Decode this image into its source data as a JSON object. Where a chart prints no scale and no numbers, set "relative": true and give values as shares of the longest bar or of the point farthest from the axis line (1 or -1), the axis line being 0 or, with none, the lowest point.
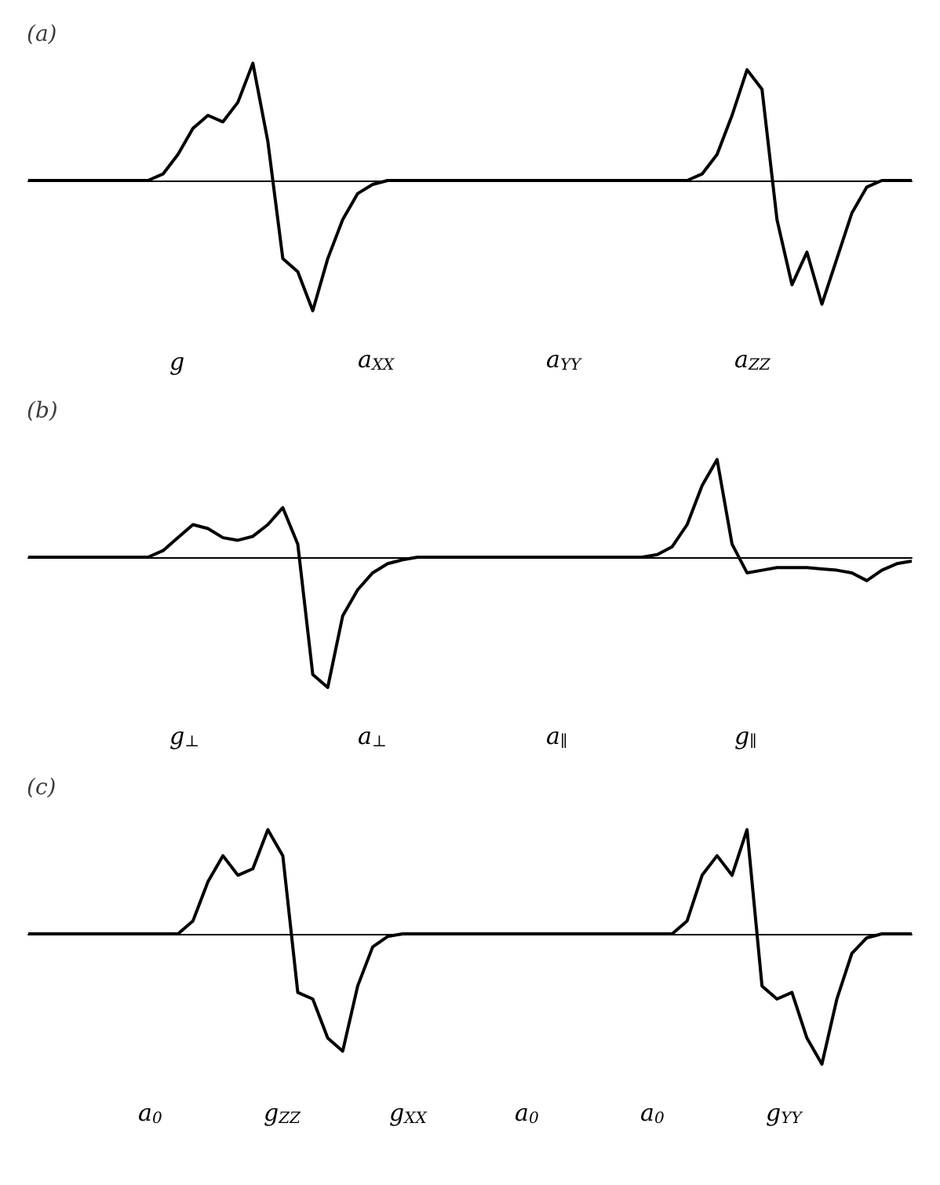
{
  "chart_data": [
    {
      "type": "line",
      "title": "(a)",
      "relative": true,
      "color": "#000000",
      "categories": [
        null,
        null,
        null,
        null,
        null,
        null,
        null,
        null,
        null,
        null,
        null,
        null,
        null,
        null,
        null,
        null,
        null,
        null,
        null,
        null,
        null,
        null,
        null,
        null,
        null,
        null,
        null,
        null,
        null,
        null,
        null,
        null,
        null,
        null,
        null,
        null,
        null,
        null,
        null,
        null,
        null,
        null,
        null,
        null,
        null,
        null,
        null,
        null,
        null,
        null,
        null,
        null,
        null,
        null,
        null,
        null,
        null,
        null,
        null,
        null
      ],
      "values": [
        0,
        0,
        0,
        0,
        0,
        0,
        0,
        0,
        0,
        0.05,
        0.2,
        0.4,
        0.5,
        0.45,
        0.6,
        0.9,
        0.3,
        -0.6,
        -0.7,
        -1,
        -0.6,
        -0.3,
        -0.1,
        -0.03,
        0,
        0,
        0,
        0,
        0,
        0,
        0,
        0,
        0,
        0,
        0,
        0,
        0,
        0,
        0,
        0,
        0,
        0,
        0,
        0,
        0,
        0.05,
        0.2,
        0.5,
        0.85,
        0.7,
        -0.3,
        -0.8,
        -0.55,
        -0.95,
        -0.6,
        -0.25,
        -0.05,
        0,
        0,
        0
      ],
      "annotations": [
        "g",
        "a$_{XX}$",
        "a$_{YY}$",
        "a$_{ZZ}$"
      ]
    },
    {
      "type": "line",
      "title": "(b)",
      "relative": true,
      "color": "#000000",
      "categories": [
        null,
        null,
        null,
        null,
        null,
        null,
        null,
        null,
        null,
        null,
        null,
        null,
        null,
        null,
        null,
        null,
        null,
        null,
        null,
        null,
        null,
        null,
        null,
        null,
        null,
        null,
        null,
        null,
        null,
        null,
        null,
        null,
        null,
        null,
        null,
        null,
        null,
        null,
        null,
        null,
        null,
        null,
        null,
        null,
        null,
        null,
        null,
        null,
        null,
        null,
        null,
        null,
        null,
        null,
        null,
        null,
        null,
        null,
        null,
        null
      ],
      "values": [
        0,
        0,
        0,
        0,
        0,
        0,
        0,
        0,
        0,
        0.05,
        0.15,
        0.25,
        0.22,
        0.15,
        0.13,
        0.16,
        0.25,
        0.38,
        0.1,
        -0.9,
        -1,
        -0.45,
        -0.25,
        -0.12,
        -0.05,
        -0.02,
        0,
        0,
        0,
        0,
        0,
        0,
        0,
        0,
        0,
        0,
        0,
        0,
        0,
        0,
        0,
        0,
        0.02,
        0.08,
        0.25,
        0.55,
        0.75,
        0.1,
        -0.12,
        -0.1,
        -0.08,
        -0.08,
        -0.08,
        -0.09,
        -0.1,
        -0.12,
        -0.18,
        -0.1,
        -0.05,
        -0.03
      ],
      "annotations": [
        "g$_{⊥}$",
        "a$_{⊥}$",
        "a$_{∥}$",
        "g$_{∥}$"
      ]
    },
    {
      "type": "line",
      "title": "(c)",
      "relative": true,
      "color": "#000000",
      "categories": [
        null,
        null,
        null,
        null,
        null,
        null,
        null,
        null,
        null,
        null,
        null,
        null,
        null,
        null,
        null,
        null,
        null,
        null,
        null,
        null,
        null,
        null,
        null,
        null,
        null,
        null,
        null,
        null,
        null,
        null,
        null,
        null,
        null,
        null,
        null,
        null,
        null,
        null,
        null,
        null,
        null,
        null,
        null,
        null,
        null,
        null,
        null,
        null,
        null,
        null,
        null,
        null,
        null,
        null,
        null,
        null,
        null,
        null,
        null,
        null
      ],
      "values": [
        0,
        0,
        0,
        0,
        0,
        0,
        0,
        0,
        0,
        0,
        0,
        0.1,
        0.4,
        0.6,
        0.45,
        0.5,
        0.8,
        0.6,
        -0.45,
        -0.5,
        -0.8,
        -0.9,
        -0.4,
        -0.1,
        -0.02,
        0,
        0,
        0,
        0,
        0,
        0,
        0,
        0,
        0,
        0,
        0,
        0,
        0,
        0,
        0,
        0,
        0,
        0,
        0,
        0.1,
        0.45,
        0.6,
        0.45,
        0.8,
        -0.4,
        -0.5,
        -0.45,
        -0.8,
        -1,
        -0.5,
        -0.15,
        -0.03,
        0,
        0,
        0
      ],
      "annotations": [
        "a$_{0}$",
        "g$_{ZZ}$",
        "g$_{XX}$",
        "a$_{0}$",
        "a$_{0}$",
        "g$_{YY}$"
      ]
    }
  ]
}
